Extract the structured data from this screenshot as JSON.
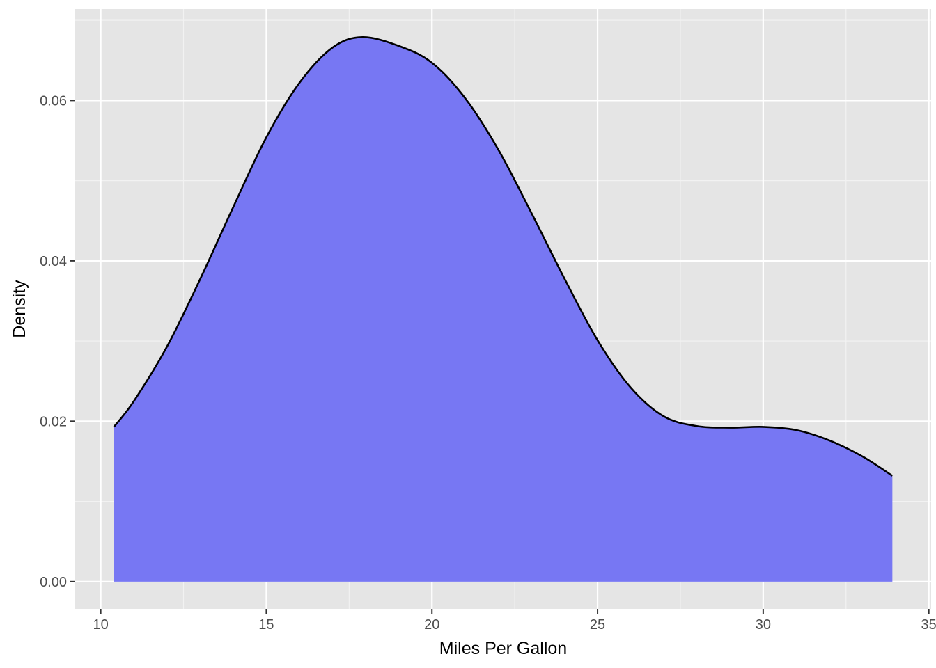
{
  "chart_data": {
    "type": "area",
    "title": "",
    "xlabel": "Miles Per Gallon",
    "ylabel": "Density",
    "xlim": [
      9.23,
      35.07
    ],
    "ylim": [
      -0.0034,
      0.0714
    ],
    "x_ticks": [
      10,
      15,
      20,
      25,
      30,
      35
    ],
    "y_ticks": [
      0.0,
      0.02,
      0.04,
      0.06
    ],
    "x_tick_labels": [
      "10",
      "15",
      "20",
      "25",
      "30",
      "35"
    ],
    "y_tick_labels": [
      "0.00",
      "0.02",
      "0.04",
      "0.06"
    ],
    "grid": true,
    "legend": "none",
    "series": [
      {
        "x": [
          10.4,
          11.0,
          12.0,
          13.0,
          14.0,
          15.0,
          16.0,
          17.0,
          17.9,
          19.0,
          20.0,
          21.0,
          22.0,
          23.0,
          24.0,
          25.0,
          26.0,
          27.0,
          28.0,
          29.0,
          30.0,
          31.0,
          32.0,
          33.0,
          33.9
        ],
        "values": [
          0.0193,
          0.0225,
          0.0293,
          0.0377,
          0.0467,
          0.0554,
          0.0622,
          0.0666,
          0.0679,
          0.0668,
          0.0647,
          0.0603,
          0.0539,
          0.046,
          0.0378,
          0.0301,
          0.0242,
          0.0206,
          0.0194,
          0.0192,
          0.0193,
          0.0189,
          0.0176,
          0.0156,
          0.0132
        ]
      }
    ]
  },
  "colors": {
    "panel": "#e5e5e5",
    "grid_major": "#ffffff",
    "grid_minor": "#f2f2f2",
    "fill": "#7373f3",
    "line": "#000000",
    "text": "#4d4d4d"
  }
}
